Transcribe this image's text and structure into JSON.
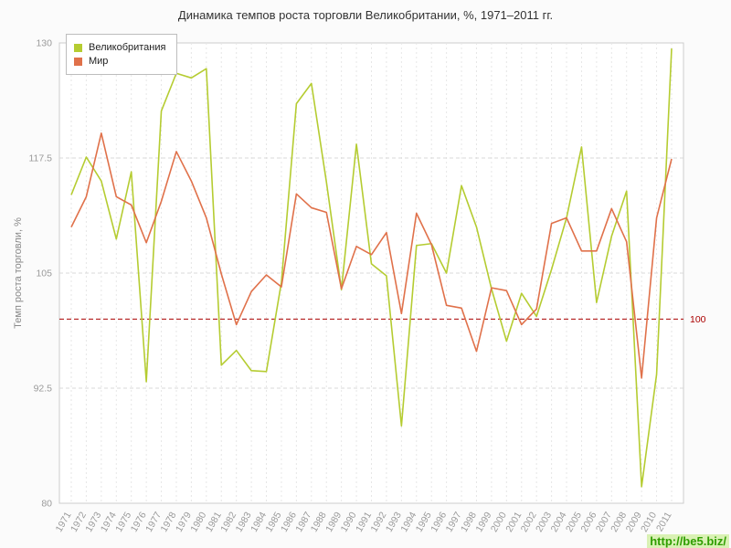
{
  "title": "Динамика темпов роста торговли Великобритании, %, 1971–2011 гг.",
  "watermark": "http://be5.biz/",
  "chart_data": {
    "type": "line",
    "title": "Динамика темпов роста торговли Великобритании, %, 1971–2011 гг.",
    "xlabel": "",
    "ylabel": "Темп роста торговли, %",
    "ylim": [
      80,
      130
    ],
    "yticks": [
      80,
      92.5,
      105,
      117.5,
      130
    ],
    "grid": true,
    "legend_position": "top-left",
    "refline": {
      "value": 100,
      "label": "100",
      "color": "#aa0000"
    },
    "colors": {
      "grid_h": "#d9d9d9",
      "grid_v": "#e6e6e6",
      "border": "#cccccc",
      "axis_text": "#9a9a9a",
      "plot_bg": "#ffffff"
    },
    "x": [
      1971,
      1972,
      1973,
      1974,
      1975,
      1976,
      1977,
      1978,
      1979,
      1980,
      1981,
      1982,
      1983,
      1984,
      1985,
      1986,
      1987,
      1988,
      1989,
      1990,
      1991,
      1992,
      1993,
      1994,
      1995,
      1996,
      1997,
      1998,
      1999,
      2000,
      2001,
      2002,
      2003,
      2004,
      2005,
      2006,
      2007,
      2008,
      2009,
      2010,
      2011
    ],
    "series": [
      {
        "name": "Великобритания",
        "color": "#b5cc31",
        "values": [
          113.5,
          117.6,
          115.0,
          108.7,
          116.0,
          93.2,
          122.6,
          126.7,
          126.2,
          127.2,
          95.0,
          96.6,
          94.4,
          94.3,
          104.0,
          123.4,
          125.6,
          114.9,
          103.2,
          119.0,
          106.0,
          104.7,
          88.4,
          108.0,
          108.2,
          105.0,
          114.5,
          110.0,
          103.3,
          97.6,
          102.8,
          100.3,
          105.4,
          111.0,
          118.7,
          101.8,
          109.0,
          113.9,
          81.8,
          94.0,
          129.4
        ]
      },
      {
        "name": "Мир",
        "color": "#e0714a",
        "values": [
          110.0,
          113.3,
          120.2,
          113.3,
          112.4,
          108.3,
          112.8,
          118.2,
          115.0,
          111.0,
          104.9,
          99.4,
          103.0,
          104.8,
          103.5,
          113.6,
          112.1,
          111.6,
          103.3,
          107.9,
          107.0,
          109.4,
          100.6,
          111.5,
          108.1,
          101.5,
          101.2,
          96.5,
          103.4,
          103.1,
          99.4,
          101.1,
          110.4,
          111.0,
          107.4,
          107.4,
          112.0,
          108.4,
          93.6,
          111.0,
          117.4
        ]
      }
    ]
  }
}
